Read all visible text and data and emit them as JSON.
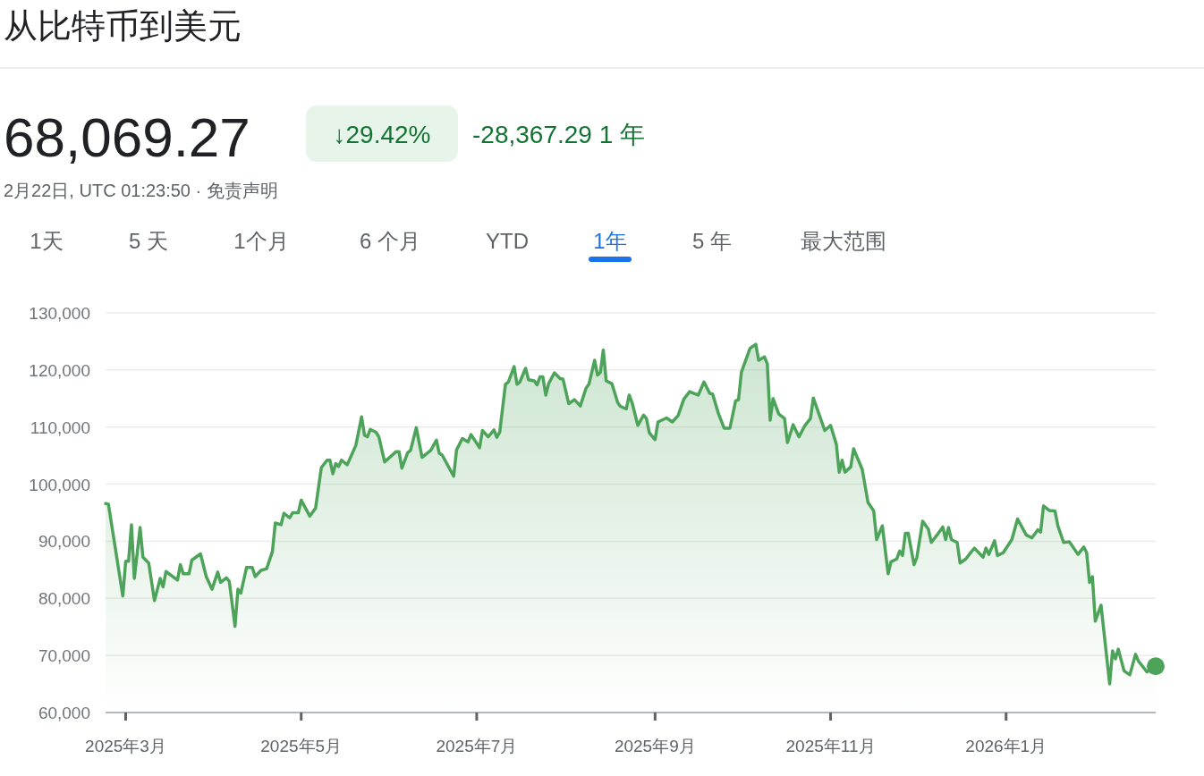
{
  "chart_data": {
    "type": "area",
    "title": "从比特币到美元",
    "annotations": [
      "68,069.27",
      "↓29.42%",
      "-28,367.29 1 年",
      "2月22日, UTC 01:23:50 · 免责声明",
      "1天",
      "5 天",
      "1个月",
      "6 个月",
      "YTD",
      "1年",
      "5 年",
      "最大范围"
    ],
    "x": [
      "2025-02-22",
      "2025-02-23",
      "2025-02-28",
      "2025-03-01",
      "2025-03-02",
      "2025-03-03",
      "2025-03-04",
      "2025-03-06",
      "2025-03-07",
      "2025-03-09",
      "2025-03-11",
      "2025-03-13",
      "2025-03-14",
      "2025-03-15",
      "2025-03-19",
      "2025-03-20",
      "2025-03-21",
      "2025-03-23",
      "2025-03-24",
      "2025-03-27",
      "2025-03-29",
      "2025-03-31",
      "2025-04-02",
      "2025-04-03",
      "2025-04-05",
      "2025-04-06",
      "2025-04-08",
      "2025-04-09",
      "2025-04-10",
      "2025-04-12",
      "2025-04-14",
      "2025-04-15",
      "2025-04-17",
      "2025-04-19",
      "2025-04-21",
      "2025-04-22",
      "2025-04-24",
      "2025-04-25",
      "2025-04-27",
      "2025-04-28",
      "2025-04-30",
      "2025-05-01",
      "2025-05-04",
      "2025-05-06",
      "2025-05-08",
      "2025-05-10",
      "2025-05-11",
      "2025-05-12",
      "2025-05-13",
      "2025-05-14",
      "2025-05-15",
      "2025-05-17",
      "2025-05-20",
      "2025-05-22",
      "2025-05-23",
      "2025-05-24",
      "2025-05-25",
      "2025-05-27",
      "2025-05-28",
      "2025-05-30",
      "2025-06-03",
      "2025-06-04",
      "2025-06-05",
      "2025-06-07",
      "2025-06-08",
      "2025-06-10",
      "2025-06-12",
      "2025-06-15",
      "2025-06-17",
      "2025-06-18",
      "2025-06-19",
      "2025-06-23",
      "2025-06-24",
      "2025-06-26",
      "2025-06-28",
      "2025-06-29",
      "2025-07-02",
      "2025-07-03",
      "2025-07-05",
      "2025-07-07",
      "2025-07-08",
      "2025-07-09",
      "2025-07-11",
      "2025-07-12",
      "2025-07-14",
      "2025-07-15",
      "2025-07-16",
      "2025-07-18",
      "2025-07-19",
      "2025-07-21",
      "2025-07-22",
      "2025-07-23",
      "2025-07-24",
      "2025-07-25",
      "2025-07-26",
      "2025-07-28",
      "2025-07-30",
      "2025-07-31",
      "2025-08-02",
      "2025-08-04",
      "2025-08-06",
      "2025-08-08",
      "2025-08-09",
      "2025-08-11",
      "2025-08-12",
      "2025-08-13",
      "2025-08-14",
      "2025-08-15",
      "2025-08-17",
      "2025-08-19",
      "2025-08-20",
      "2025-08-22",
      "2025-08-23",
      "2025-08-24",
      "2025-08-26",
      "2025-08-28",
      "2025-08-29",
      "2025-08-30",
      "2025-09-01",
      "2025-09-02",
      "2025-09-05",
      "2025-09-07",
      "2025-09-09",
      "2025-09-11",
      "2025-09-13",
      "2025-09-16",
      "2025-09-18",
      "2025-09-20",
      "2025-09-21",
      "2025-09-23",
      "2025-09-25",
      "2025-09-27",
      "2025-09-29",
      "2025-09-30",
      "2025-10-01",
      "2025-10-04",
      "2025-10-06",
      "2025-10-07",
      "2025-10-09",
      "2025-10-10",
      "2025-10-11",
      "2025-10-12",
      "2025-10-14",
      "2025-10-16",
      "2025-10-17",
      "2025-10-19",
      "2025-10-21",
      "2025-10-23",
      "2025-10-25",
      "2025-10-26",
      "2025-10-30",
      "2025-11-01",
      "2025-11-03",
      "2025-11-04",
      "2025-11-05",
      "2025-11-06",
      "2025-11-08",
      "2025-11-09",
      "2025-11-12",
      "2025-11-14",
      "2025-11-16",
      "2025-11-17",
      "2025-11-19",
      "2025-11-21",
      "2025-11-22",
      "2025-11-24",
      "2025-11-25",
      "2025-11-26",
      "2025-11-27",
      "2025-11-28",
      "2025-11-30",
      "2025-12-01",
      "2025-12-03",
      "2025-12-05",
      "2025-12-06",
      "2025-12-08",
      "2025-12-10",
      "2025-12-11",
      "2025-12-12",
      "2025-12-13",
      "2025-12-15",
      "2025-12-16",
      "2025-12-18",
      "2025-12-20",
      "2025-12-21",
      "2025-12-24",
      "2025-12-25",
      "2025-12-26",
      "2025-12-28",
      "2025-12-29",
      "2025-12-31",
      "2026-01-03",
      "2026-01-05",
      "2026-01-08",
      "2026-01-10",
      "2026-01-12",
      "2026-01-13",
      "2026-01-14",
      "2026-01-16",
      "2026-01-18",
      "2026-01-19",
      "2026-01-21",
      "2026-01-23",
      "2026-01-26",
      "2026-01-28",
      "2026-01-29",
      "2026-01-30",
      "2026-01-31",
      "2026-02-01",
      "2026-02-03",
      "2026-02-06",
      "2026-02-07",
      "2026-02-08",
      "2026-02-09",
      "2026-02-11",
      "2026-02-13",
      "2026-02-15",
      "2026-02-16",
      "2026-02-19",
      "2026-02-22"
    ],
    "series": [
      {
        "color": "#4ea35b",
        "values": [
          96600,
          96500,
          80400,
          86500,
          86500,
          92900,
          83500,
          92400,
          87200,
          86200,
          79600,
          83500,
          82000,
          84700,
          83200,
          85900,
          84300,
          84300,
          86700,
          87800,
          83800,
          81600,
          84600,
          82800,
          83600,
          83000,
          75100,
          81600,
          80900,
          85400,
          85400,
          83800,
          84900,
          85200,
          88200,
          93200,
          92900,
          94900,
          94100,
          95000,
          95000,
          97200,
          94400,
          95800,
          102900,
          104200,
          104200,
          101800,
          103600,
          103100,
          104200,
          103400,
          106800,
          111800,
          108600,
          108300,
          109600,
          109100,
          108300,
          103900,
          105700,
          105700,
          102800,
          105500,
          105900,
          109900,
          104700,
          105900,
          107700,
          105400,
          105100,
          101400,
          106000,
          108000,
          107400,
          108700,
          106400,
          109400,
          108300,
          109500,
          108200,
          109100,
          117500,
          117900,
          120600,
          117500,
          117900,
          120300,
          118300,
          118100,
          117400,
          118800,
          118800,
          115600,
          117600,
          119500,
          118500,
          118400,
          114100,
          114800,
          113700,
          116800,
          117500,
          121700,
          119100,
          119600,
          123500,
          118100,
          117600,
          114300,
          113600,
          113200,
          115600,
          114300,
          110300,
          112100,
          111500,
          109000,
          107800,
          110900,
          111600,
          110900,
          112000,
          114900,
          116200,
          115600,
          117900,
          115900,
          115800,
          112400,
          109800,
          109800,
          114600,
          114800,
          119600,
          123800,
          124500,
          121700,
          122300,
          121100,
          111200,
          115000,
          112300,
          111500,
          107300,
          110400,
          108300,
          110200,
          111500,
          115100,
          109400,
          110300,
          107000,
          102100,
          104200,
          102100,
          103000,
          106200,
          102600,
          96800,
          95300,
          90300,
          92700,
          84300,
          86400,
          86900,
          88300,
          87500,
          91400,
          91400,
          85900,
          87200,
          93500,
          92100,
          89800,
          91100,
          92500,
          90300,
          92400,
          90300,
          89800,
          86200,
          86900,
          88200,
          88800,
          87200,
          88800,
          87700,
          90100,
          87500,
          88000,
          90300,
          93900,
          91100,
          90600,
          92000,
          91600,
          96200,
          95400,
          95300,
          92700,
          89800,
          89900,
          87700,
          89000,
          88000,
          82800,
          83800,
          76000,
          78800,
          65000,
          70800,
          69400,
          71100,
          67300,
          66600,
          70200,
          69000,
          67100,
          68100
        ]
      },
      {
        "type": "scatter",
        "color": "#4ea35b",
        "marker": "circle",
        "x": [
          "2026-02-22"
        ],
        "values": [
          68100
        ]
      }
    ],
    "xlim": [
      "2025-02-22",
      "2026-02-22"
    ],
    "xticks": [
      {
        "value": "2025-03-01",
        "label": "2025年3月"
      },
      {
        "value": "2025-05-01",
        "label": "2025年5月"
      },
      {
        "value": "2025-07-01",
        "label": "2025年7月"
      },
      {
        "value": "2025-09-01",
        "label": "2025年9月"
      },
      {
        "value": "2025-11-01",
        "label": "2025年11月"
      },
      {
        "value": "2026-01-01",
        "label": "2026年1月"
      }
    ],
    "ylim": [
      60000,
      130000
    ],
    "yticks": [
      {
        "value": 60000,
        "label": "60,000"
      },
      {
        "value": 70000,
        "label": "70,000"
      },
      {
        "value": 80000,
        "label": "80,000"
      },
      {
        "value": 90000,
        "label": "90,000"
      },
      {
        "value": 100000,
        "label": "100,000"
      },
      {
        "value": 110000,
        "label": "110,000"
      },
      {
        "value": 120000,
        "label": "120,000"
      },
      {
        "value": 130000,
        "label": "130,000"
      }
    ],
    "grid": "y"
  }
}
